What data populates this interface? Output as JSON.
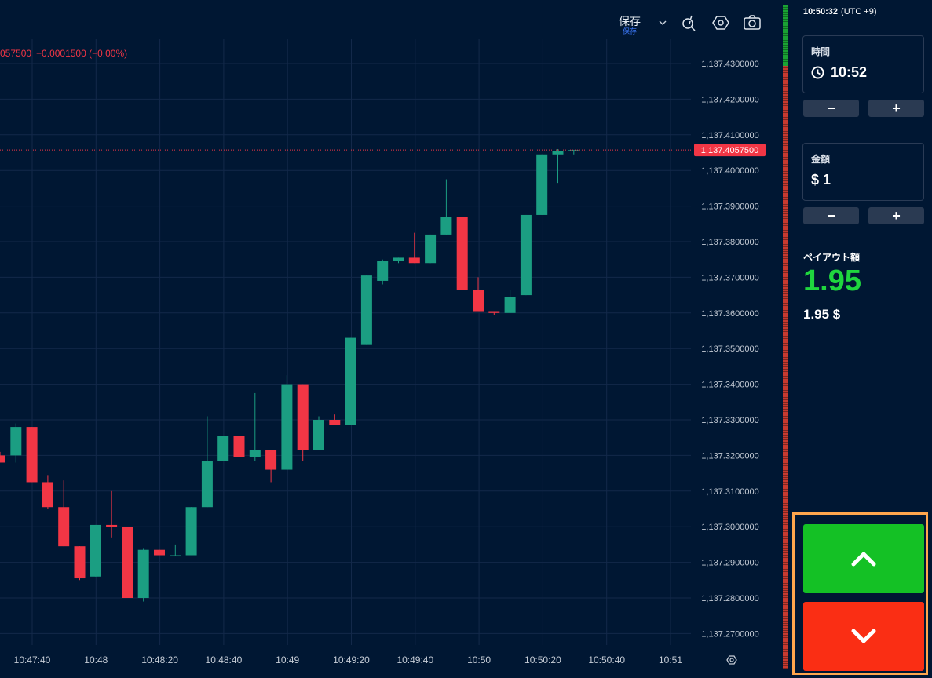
{
  "toolbar": {
    "save_label": "保存",
    "save_sub": "保存",
    "icons": [
      "chevron-down-icon",
      "drawing-tool-icon",
      "settings-hexagon-icon",
      "camera-icon"
    ]
  },
  "header": {
    "price_partial": "057500",
    "change": "−0.0001500 (−0.00%)"
  },
  "chart_data": {
    "type": "candlestick",
    "ylim": [
      1137.265,
      1137.435
    ],
    "y_ticks": [
      "1,137.4300000",
      "1,137.4200000",
      "1,137.4100000",
      "1,137.4000000",
      "1,137.3900000",
      "1,137.3800000",
      "1,137.3700000",
      "1,137.3600000",
      "1,137.3500000",
      "1,137.3400000",
      "1,137.3300000",
      "1,137.3200000",
      "1,137.3100000",
      "1,137.3000000",
      "1,137.2900000",
      "1,137.2800000",
      "1,137.2700000"
    ],
    "x_ticks": [
      "10:47:40",
      "10:48",
      "10:48:20",
      "10:48:40",
      "10:49",
      "10:49:20",
      "10:49:40",
      "10:50",
      "10:50:20",
      "10:50:40",
      "10:51"
    ],
    "current_price": 1137.40575,
    "current_price_label": "1,137.4057500",
    "candles": [
      {
        "o": 1137.32,
        "h": 1137.321,
        "l": 1137.318,
        "c": 1137.318
      },
      {
        "o": 1137.32,
        "h": 1137.329,
        "l": 1137.318,
        "c": 1137.328
      },
      {
        "o": 1137.328,
        "h": 1137.328,
        "l": 1137.3125,
        "c": 1137.3125
      },
      {
        "o": 1137.3125,
        "h": 1137.3145,
        "l": 1137.305,
        "c": 1137.3055
      },
      {
        "o": 1137.3055,
        "h": 1137.313,
        "l": 1137.2945,
        "c": 1137.2945
      },
      {
        "o": 1137.2945,
        "h": 1137.2945,
        "l": 1137.285,
        "c": 1137.2855
      },
      {
        "o": 1137.286,
        "h": 1137.3005,
        "l": 1137.286,
        "c": 1137.3005
      },
      {
        "o": 1137.3005,
        "h": 1137.31,
        "l": 1137.297,
        "c": 1137.3
      },
      {
        "o": 1137.3,
        "h": 1137.3,
        "l": 1137.28,
        "c": 1137.28
      },
      {
        "o": 1137.28,
        "h": 1137.294,
        "l": 1137.279,
        "c": 1137.2935
      },
      {
        "o": 1137.2935,
        "h": 1137.2935,
        "l": 1137.292,
        "c": 1137.292
      },
      {
        "o": 1137.292,
        "h": 1137.295,
        "l": 1137.292,
        "c": 1137.292
      },
      {
        "o": 1137.292,
        "h": 1137.3055,
        "l": 1137.292,
        "c": 1137.3055
      },
      {
        "o": 1137.3055,
        "h": 1137.331,
        "l": 1137.3055,
        "c": 1137.3185
      },
      {
        "o": 1137.3185,
        "h": 1137.3255,
        "l": 1137.3185,
        "c": 1137.3255
      },
      {
        "o": 1137.3255,
        "h": 1137.3255,
        "l": 1137.3195,
        "c": 1137.3195
      },
      {
        "o": 1137.3195,
        "h": 1137.3375,
        "l": 1137.3185,
        "c": 1137.3215
      },
      {
        "o": 1137.3215,
        "h": 1137.3215,
        "l": 1137.3125,
        "c": 1137.316
      },
      {
        "o": 1137.316,
        "h": 1137.3425,
        "l": 1137.316,
        "c": 1137.34
      },
      {
        "o": 1137.34,
        "h": 1137.34,
        "l": 1137.3185,
        "c": 1137.3215
      },
      {
        "o": 1137.3215,
        "h": 1137.331,
        "l": 1137.3215,
        "c": 1137.33
      },
      {
        "o": 1137.33,
        "h": 1137.3315,
        "l": 1137.3285,
        "c": 1137.3285
      },
      {
        "o": 1137.3285,
        "h": 1137.353,
        "l": 1137.3285,
        "c": 1137.353
      },
      {
        "o": 1137.351,
        "h": 1137.3705,
        "l": 1137.351,
        "c": 1137.3705
      },
      {
        "o": 1137.369,
        "h": 1137.375,
        "l": 1137.368,
        "c": 1137.3745
      },
      {
        "o": 1137.3745,
        "h": 1137.3755,
        "l": 1137.374,
        "c": 1137.3755
      },
      {
        "o": 1137.3755,
        "h": 1137.3825,
        "l": 1137.374,
        "c": 1137.374
      },
      {
        "o": 1137.374,
        "h": 1137.382,
        "l": 1137.374,
        "c": 1137.382
      },
      {
        "o": 1137.382,
        "h": 1137.3975,
        "l": 1137.382,
        "c": 1137.387
      },
      {
        "o": 1137.387,
        "h": 1137.387,
        "l": 1137.3665,
        "c": 1137.3665
      },
      {
        "o": 1137.3665,
        "h": 1137.37,
        "l": 1137.3605,
        "c": 1137.3605
      },
      {
        "o": 1137.3605,
        "h": 1137.3605,
        "l": 1137.3595,
        "c": 1137.36
      },
      {
        "o": 1137.36,
        "h": 1137.3665,
        "l": 1137.36,
        "c": 1137.3645
      },
      {
        "o": 1137.365,
        "h": 1137.3875,
        "l": 1137.365,
        "c": 1137.3875
      },
      {
        "o": 1137.3875,
        "h": 1137.4045,
        "l": 1137.3875,
        "c": 1137.4045
      },
      {
        "o": 1137.4045,
        "h": 1137.406,
        "l": 1137.3965,
        "c": 1137.4055
      },
      {
        "o": 1137.4057,
        "h": 1137.4058,
        "l": 1137.4045,
        "c": 1137.4057
      }
    ],
    "bull_color": "#1b9e82",
    "bear_color": "#f23645",
    "grid": true
  },
  "panel": {
    "clock_time": "10:50:32",
    "clock_tz": "(UTC +9)",
    "time_label": "時間",
    "time_value": "10:52",
    "amount_label": "金額",
    "amount_value": "$ 1",
    "minus": "−",
    "plus": "+",
    "payout_label": "ペイアウト額",
    "payout_value": "1.95",
    "payout_amount": "1.95 $"
  },
  "colors": {
    "background": "#001733",
    "up_button": "#14c125",
    "down_button": "#fa2e14",
    "payout": "#1fd63e",
    "highlight_border": "#ffa64d"
  }
}
